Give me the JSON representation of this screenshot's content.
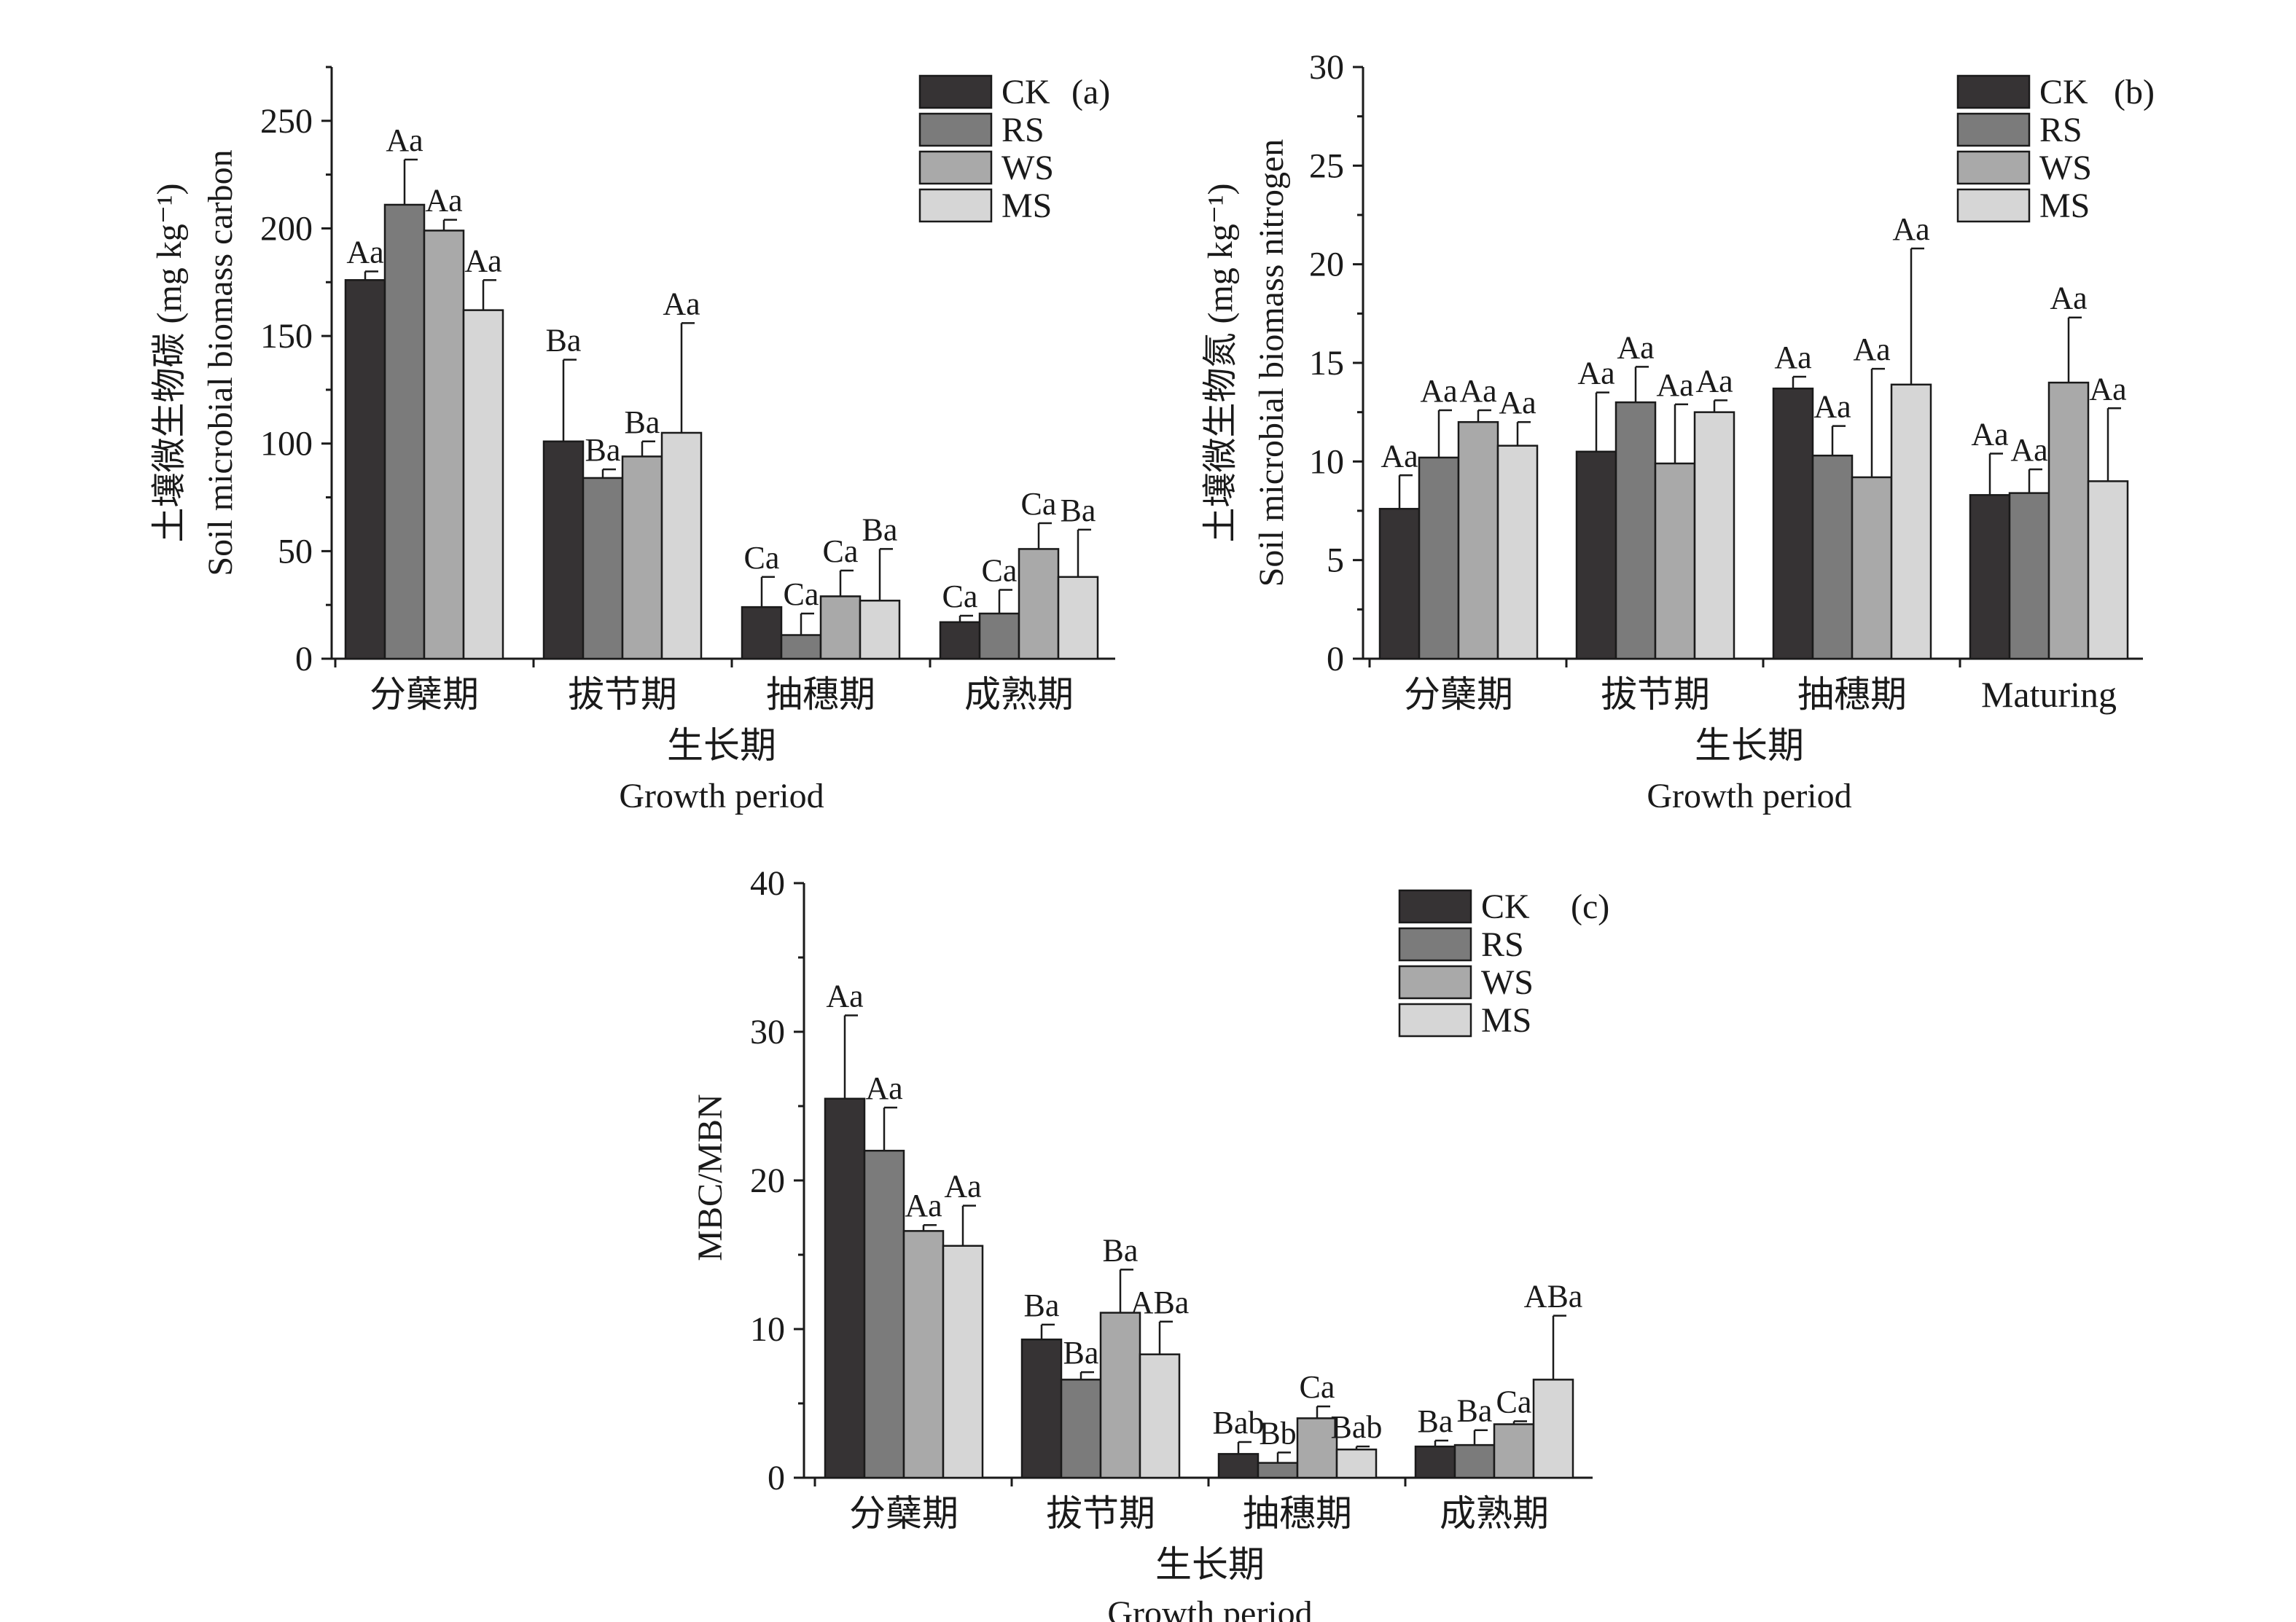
{
  "legend_names": [
    "CK",
    "RS",
    "WS",
    "MS"
  ],
  "colors": {
    "CK": "#363334",
    "RS": "#7b7b7b",
    "WS": "#a9a9a9",
    "MS": "#d6d6d6",
    "axis": "#1a1a1a"
  },
  "chart_data": [
    {
      "type": "bar",
      "panel_tag": "(a)",
      "ylabel_cn": "土壤微生物碳 (mg kg⁻¹)",
      "ylabel_en": "Soil microbial biomass carbon",
      "xlabel_cn": "生长期",
      "xlabel_en": "Growth period",
      "categories": [
        "分蘖期",
        "拔节期",
        "抽穗期",
        "成熟期"
      ],
      "ylim": [
        0,
        275
      ],
      "yticks": [
        0,
        50,
        100,
        150,
        200,
        250
      ],
      "legend_position": "top-right",
      "grid": false,
      "series": [
        {
          "name": "CK",
          "values": [
            176,
            101,
            24,
            17
          ],
          "errors": [
            4,
            38,
            14,
            3
          ],
          "labels": [
            "Aa",
            "Ba",
            "Ca",
            "Ca"
          ]
        },
        {
          "name": "RS",
          "values": [
            211,
            84,
            11,
            21
          ],
          "errors": [
            21,
            4,
            10,
            11
          ],
          "labels": [
            "Aa",
            "Ba",
            "Ca",
            "Ca"
          ]
        },
        {
          "name": "WS",
          "values": [
            199,
            94,
            29,
            51
          ],
          "errors": [
            5,
            7,
            12,
            12
          ],
          "labels": [
            "Aa",
            "Ba",
            "Ca",
            "Ca"
          ]
        },
        {
          "name": "MS",
          "values": [
            162,
            105,
            27,
            38
          ],
          "errors": [
            14,
            51,
            24,
            22
          ],
          "labels": [
            "Aa",
            "Aa",
            "Ba",
            "Ba"
          ]
        }
      ]
    },
    {
      "type": "bar",
      "panel_tag": "(b)",
      "ylabel_cn": "土壤微生物氮 (mg kg⁻¹)",
      "ylabel_en": "Soil microbial biomass nitrogen",
      "xlabel_cn": "生长期",
      "xlabel_en": "Growth period",
      "categories": [
        "分蘖期",
        "拔节期",
        "抽穗期",
        "Maturing"
      ],
      "ylim": [
        0,
        30
      ],
      "yticks": [
        0,
        5,
        10,
        15,
        20,
        25,
        30
      ],
      "legend_position": "top-right",
      "grid": false,
      "series": [
        {
          "name": "CK",
          "values": [
            7.6,
            10.5,
            13.7,
            8.3
          ],
          "errors": [
            1.7,
            3.0,
            0.6,
            2.1
          ],
          "labels": [
            "Aa",
            "Aa",
            "Aa",
            "Aa"
          ]
        },
        {
          "name": "RS",
          "values": [
            10.2,
            13.0,
            10.3,
            8.4
          ],
          "errors": [
            2.4,
            1.8,
            1.5,
            1.2
          ],
          "labels": [
            "Aa",
            "Aa",
            "Aa",
            "Aa"
          ]
        },
        {
          "name": "WS",
          "values": [
            12.0,
            9.9,
            9.2,
            14.0
          ],
          "errors": [
            0.6,
            3.0,
            5.5,
            3.3
          ],
          "labels": [
            "Aa",
            "Aa",
            "Aa",
            "Aa"
          ]
        },
        {
          "name": "MS",
          "values": [
            10.8,
            12.5,
            13.9,
            9.0
          ],
          "errors": [
            1.2,
            0.6,
            6.9,
            3.7
          ],
          "labels": [
            "Aa",
            "Aa",
            "Aa",
            "Aa"
          ]
        }
      ]
    },
    {
      "type": "bar",
      "panel_tag": "(c)",
      "ylabel_en": "MBC/MBN",
      "xlabel_cn": "生长期",
      "xlabel_en": "Growth period",
      "categories": [
        "分蘖期",
        "拔节期",
        "抽穗期",
        "成熟期"
      ],
      "ylim": [
        0,
        40
      ],
      "yticks": [
        0,
        10,
        20,
        30,
        40
      ],
      "legend_position": "top-right",
      "grid": false,
      "series": [
        {
          "name": "CK",
          "values": [
            25.5,
            9.3,
            1.6,
            2.1
          ],
          "errors": [
            5.6,
            1.0,
            0.8,
            0.4
          ],
          "labels": [
            "Aa",
            "Ba",
            "Bab",
            "Ba"
          ]
        },
        {
          "name": "RS",
          "values": [
            22.0,
            6.6,
            1.0,
            2.2
          ],
          "errors": [
            2.9,
            0.5,
            0.7,
            1.0
          ],
          "labels": [
            "Aa",
            "Ba",
            "Bb",
            "Ba"
          ]
        },
        {
          "name": "WS",
          "values": [
            16.6,
            11.1,
            4.0,
            3.6
          ],
          "errors": [
            0.4,
            2.9,
            0.8,
            0.2
          ],
          "labels": [
            "Aa",
            "Ba",
            "Ca",
            "Ca"
          ]
        },
        {
          "name": "MS",
          "values": [
            15.6,
            8.3,
            1.9,
            6.6
          ],
          "errors": [
            2.7,
            2.2,
            0.2,
            4.3
          ],
          "labels": [
            "Aa",
            "ABa",
            "Bab",
            "ABa"
          ]
        }
      ]
    }
  ]
}
